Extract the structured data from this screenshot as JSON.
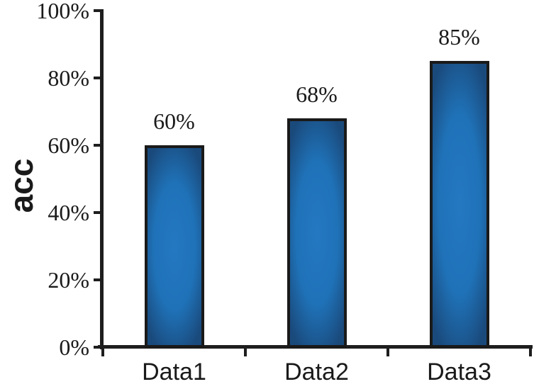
{
  "figure": {
    "background": "#ffffff"
  },
  "chart_data": {
    "type": "bar",
    "title": "",
    "categories": [
      "Data1",
      "Data2",
      "Data3"
    ],
    "values": [
      60,
      68,
      85
    ],
    "value_labels": [
      "60%",
      "68%",
      "85%"
    ],
    "xlabel": "",
    "ylabel": "acc",
    "ylim": [
      0,
      100
    ],
    "y_ticks": [
      0,
      20,
      40,
      60,
      80,
      100
    ],
    "y_tick_labels": [
      "0%",
      "20%",
      "40%",
      "60%",
      "80%",
      "100%"
    ],
    "grid": false,
    "legend": "none",
    "colors": {
      "bar_center": "#2478c1",
      "bar_mid": "#1f72b8",
      "bar_edge": "#1a4a7c",
      "bar_border": "#1a1a1a",
      "axis": "#1e1e1e",
      "text": "#1a1a1a"
    }
  }
}
